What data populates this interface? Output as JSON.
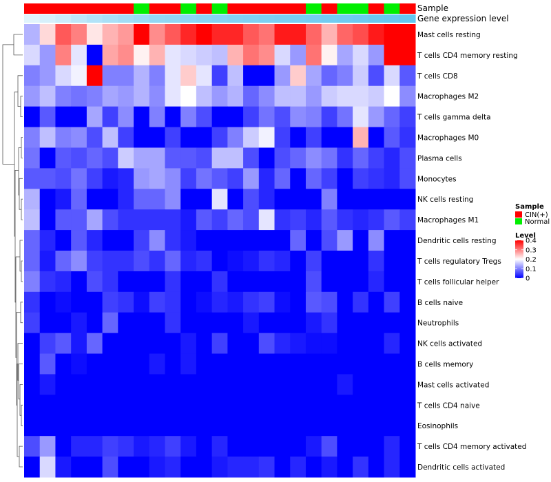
{
  "chart_data": {
    "type": "heatmap",
    "title": "",
    "annotation_rows": [
      {
        "name": "Sample",
        "label": "Sample",
        "values": [
          "CIN(+)",
          "CIN(+)",
          "CIN(+)",
          "CIN(+)",
          "CIN(+)",
          "CIN(+)",
          "CIN(+)",
          "Normal",
          "CIN(+)",
          "CIN(+)",
          "Normal",
          "CIN(+)",
          "Normal",
          "CIN(+)",
          "CIN(+)",
          "CIN(+)",
          "CIN(+)",
          "CIN(+)",
          "Normal",
          "CIN(+)",
          "Normal",
          "Normal",
          "CIN(+)",
          "Normal",
          "CIN(+)"
        ]
      },
      {
        "name": "Gene expression level",
        "label": "Gene expression level",
        "values": [
          0.05,
          0.12,
          0.2,
          0.3,
          0.38,
          0.45,
          0.5,
          0.55,
          0.6,
          0.62,
          0.65,
          0.68,
          0.7,
          0.72,
          0.74,
          0.76,
          0.78,
          0.8,
          0.82,
          0.84,
          0.86,
          0.88,
          0.9,
          0.92,
          0.95
        ]
      }
    ],
    "rows": [
      "Mast cells resting",
      "T cells CD4 memory resting",
      "T cells CD8",
      "Macrophages M2",
      "T cells gamma delta",
      "Macrophages M0",
      "Plasma cells",
      "Monocytes",
      "NK cells resting",
      "Macrophages M1",
      "Dendritic cells resting",
      "T cells regulatory  Tregs",
      "T cells follicular helper",
      "B cells naive",
      "Neutrophils",
      "NK cells activated",
      "B cells memory",
      "Mast cells activated",
      "T cells CD4 naive",
      "Eosinophils",
      "T cells CD4 memory activated",
      "Dendritic cells activated"
    ],
    "values": [
      [
        0.14,
        0.23,
        0.33,
        0.3,
        0.22,
        0.26,
        0.28,
        0.4,
        0.29,
        0.33,
        0.37,
        0.4,
        0.37,
        0.37,
        0.33,
        0.31,
        0.38,
        0.38,
        0.32,
        0.26,
        0.32,
        0.34,
        0.38,
        0.4,
        0.4
      ],
      [
        0.17,
        0.12,
        0.3,
        0.18,
        0.0,
        0.27,
        0.29,
        0.21,
        0.26,
        0.18,
        0.17,
        0.16,
        0.15,
        0.26,
        0.31,
        0.29,
        0.17,
        0.12,
        0.31,
        0.21,
        0.13,
        0.17,
        0.12,
        0.4,
        0.4
      ],
      [
        0.1,
        0.12,
        0.17,
        0.19,
        0.4,
        0.1,
        0.1,
        0.14,
        0.1,
        0.18,
        0.24,
        0.18,
        0.05,
        0.15,
        0.0,
        0.0,
        0.12,
        0.24,
        0.13,
        0.08,
        0.1,
        0.16,
        0.06,
        0.17,
        0.07
      ],
      [
        0.12,
        0.15,
        0.1,
        0.09,
        0.1,
        0.13,
        0.12,
        0.14,
        0.11,
        0.18,
        0.2,
        0.15,
        0.12,
        0.14,
        0.08,
        0.11,
        0.15,
        0.15,
        0.12,
        0.16,
        0.17,
        0.17,
        0.16,
        0.2,
        0.11
      ],
      [
        0.0,
        0.07,
        0.0,
        0.0,
        0.13,
        0.05,
        0.11,
        0.0,
        0.1,
        0.0,
        0.1,
        0.06,
        0.0,
        0.0,
        0.05,
        0.09,
        0.06,
        0.11,
        0.1,
        0.05,
        0.09,
        0.18,
        0.12,
        0.08,
        0.05
      ],
      [
        0.1,
        0.15,
        0.1,
        0.11,
        0.06,
        0.15,
        0.05,
        0.0,
        0.0,
        0.05,
        0.0,
        0.0,
        0.05,
        0.1,
        0.16,
        0.19,
        0.05,
        0.0,
        0.05,
        0.0,
        0.0,
        0.26,
        0.0,
        0.07,
        0.04
      ],
      [
        0.09,
        0.0,
        0.07,
        0.06,
        0.08,
        0.06,
        0.16,
        0.13,
        0.13,
        0.07,
        0.07,
        0.06,
        0.15,
        0.15,
        0.06,
        0.0,
        0.06,
        0.08,
        0.11,
        0.09,
        0.04,
        0.08,
        0.05,
        0.03,
        0.06
      ],
      [
        0.07,
        0.07,
        0.06,
        0.09,
        0.05,
        0.02,
        0.03,
        0.12,
        0.13,
        0.11,
        0.05,
        0.09,
        0.07,
        0.05,
        0.12,
        0.03,
        0.08,
        0.0,
        0.08,
        0.05,
        0.0,
        0.05,
        0.04,
        0.03,
        0.06
      ],
      [
        0.14,
        0.0,
        0.02,
        0.08,
        0.0,
        0.0,
        0.03,
        0.08,
        0.08,
        0.11,
        0.0,
        0.0,
        0.18,
        0.0,
        0.06,
        0.03,
        0.0,
        0.0,
        0.0,
        0.1,
        0.0,
        0.0,
        0.0,
        0.0,
        0.0
      ],
      [
        0.15,
        0.0,
        0.07,
        0.07,
        0.13,
        0.06,
        0.04,
        0.04,
        0.04,
        0.04,
        0.02,
        0.07,
        0.05,
        0.08,
        0.06,
        0.18,
        0.04,
        0.05,
        0.03,
        0.07,
        0.04,
        0.03,
        0.04,
        0.07,
        0.05
      ],
      [
        0.08,
        0.03,
        0.0,
        0.07,
        0.03,
        0.0,
        0.0,
        0.05,
        0.11,
        0.04,
        0.02,
        0.0,
        0.0,
        0.0,
        0.0,
        0.0,
        0.0,
        0.08,
        0.0,
        0.06,
        0.12,
        0.0,
        0.11,
        0.0,
        0.0
      ],
      [
        0.08,
        0.02,
        0.08,
        0.11,
        0.05,
        0.04,
        0.04,
        0.06,
        0.04,
        0.08,
        0.03,
        0.04,
        0.0,
        0.01,
        0.02,
        0.04,
        0.03,
        0.0,
        0.05,
        0.0,
        0.0,
        0.0,
        0.04,
        0.0,
        0.0
      ],
      [
        0.1,
        0.04,
        0.03,
        0.0,
        0.06,
        0.04,
        0.0,
        0.0,
        0.0,
        0.04,
        0.0,
        0.0,
        0.04,
        0.0,
        0.0,
        0.0,
        0.0,
        0.0,
        0.06,
        0.0,
        0.0,
        0.0,
        0.03,
        0.0,
        0.0
      ],
      [
        0.04,
        0.0,
        0.01,
        0.0,
        0.0,
        0.05,
        0.04,
        0.01,
        0.05,
        0.04,
        0.0,
        0.01,
        0.03,
        0.02,
        0.04,
        0.05,
        0.01,
        0.0,
        0.07,
        0.06,
        0.0,
        0.04,
        0.0,
        0.05,
        0.0
      ],
      [
        0.05,
        0.0,
        0.0,
        0.02,
        0.0,
        0.08,
        0.0,
        0.0,
        0.0,
        0.04,
        0.0,
        0.0,
        0.0,
        0.0,
        0.02,
        0.0,
        0.0,
        0.0,
        0.02,
        0.04,
        0.0,
        0.0,
        0.0,
        0.0,
        0.0
      ],
      [
        0.0,
        0.05,
        0.07,
        0.02,
        0.08,
        0.0,
        0.0,
        0.0,
        0.0,
        0.0,
        0.02,
        0.0,
        0.05,
        0.0,
        0.0,
        0.06,
        0.03,
        0.02,
        0.01,
        0.01,
        0.0,
        0.0,
        0.0,
        0.03,
        0.0
      ],
      [
        0.0,
        0.07,
        0.0,
        0.01,
        0.0,
        0.0,
        0.0,
        0.0,
        0.02,
        0.0,
        0.02,
        0.0,
        0.0,
        0.0,
        0.0,
        0.0,
        0.0,
        0.0,
        0.0,
        0.0,
        0.0,
        0.0,
        0.0,
        0.0,
        0.0
      ],
      [
        0.0,
        0.02,
        0.0,
        0.0,
        0.0,
        0.0,
        0.0,
        0.0,
        0.0,
        0.0,
        0.0,
        0.0,
        0.0,
        0.0,
        0.0,
        0.0,
        0.0,
        0.0,
        0.0,
        0.0,
        0.02,
        0.0,
        0.0,
        0.0,
        0.0
      ],
      [
        0.0,
        0.0,
        0.0,
        0.0,
        0.0,
        0.0,
        0.0,
        0.0,
        0.0,
        0.0,
        0.0,
        0.0,
        0.0,
        0.0,
        0.0,
        0.0,
        0.0,
        0.0,
        0.0,
        0.0,
        0.0,
        0.0,
        0.0,
        0.0,
        0.0
      ],
      [
        0.0,
        0.0,
        0.0,
        0.0,
        0.0,
        0.0,
        0.0,
        0.0,
        0.0,
        0.0,
        0.0,
        0.0,
        0.0,
        0.0,
        0.0,
        0.0,
        0.0,
        0.0,
        0.0,
        0.0,
        0.0,
        0.0,
        0.0,
        0.0,
        0.0
      ],
      [
        0.06,
        0.12,
        0.0,
        0.03,
        0.03,
        0.05,
        0.04,
        0.02,
        0.03,
        0.05,
        0.02,
        0.0,
        0.03,
        0.0,
        0.0,
        0.0,
        0.0,
        0.0,
        0.02,
        0.06,
        0.0,
        0.0,
        0.0,
        0.03,
        0.0
      ],
      [
        0.0,
        0.17,
        0.02,
        0.0,
        0.0,
        0.06,
        0.0,
        0.0,
        0.02,
        0.03,
        0.0,
        0.0,
        0.02,
        0.03,
        0.03,
        0.04,
        0.0,
        0.03,
        0.0,
        0.02,
        0.0,
        0.04,
        0.0,
        0.03,
        0.0
      ]
    ],
    "color_scale": {
      "name": "Level",
      "min": 0,
      "max": 0.4,
      "ticks": [
        "0",
        "0.1",
        "0.2",
        "0.3",
        "0.4"
      ],
      "tick_values": [
        0,
        0.1,
        0.2,
        0.3,
        0.4
      ],
      "low_color": "#0000ff",
      "mid_color": "#ffffff",
      "high_color": "#ff0000"
    },
    "legends": {
      "sample": {
        "title": "Sample",
        "items": [
          {
            "label": "CIN(+)",
            "color": "#ff0000"
          },
          {
            "label": "Normal",
            "color": "#00ee00"
          }
        ]
      },
      "level": {
        "title": "Level"
      }
    },
    "expression_bar": {
      "low_color": "#e8f6fd",
      "high_color": "#5bc4ef"
    },
    "dendrogram": "row clustering dendrogram on left"
  }
}
